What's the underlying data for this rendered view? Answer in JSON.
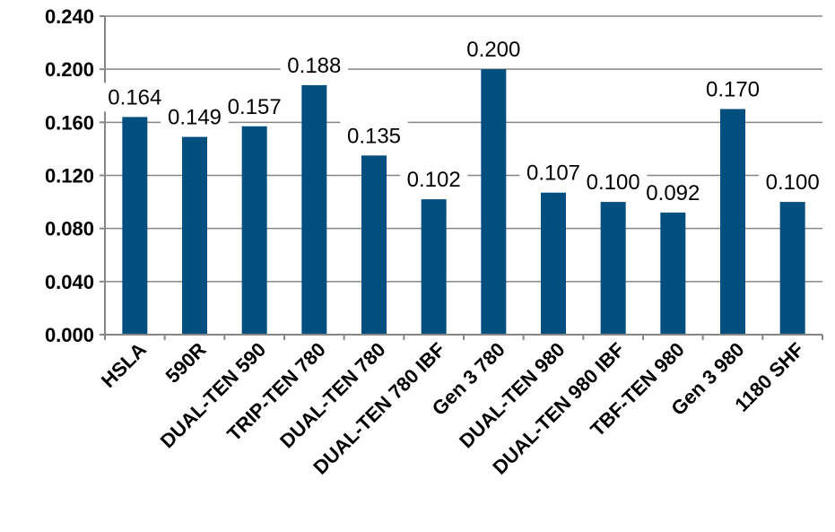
{
  "chart_data": {
    "type": "bar",
    "categories": [
      "HSLA",
      "590R",
      "DUAL-TEN 590",
      "TRIP-TEN 780",
      "DUAL-TEN 780",
      "DUAL-TEN 780 IBF",
      "Gen 3 780",
      "DUAL-TEN 980",
      "DUAL-TEN 980 IBF",
      "TBF-TEN 980",
      "Gen 3 980",
      "1180 SHF"
    ],
    "values": [
      0.164,
      0.149,
      0.157,
      0.188,
      0.135,
      0.102,
      0.2,
      0.107,
      0.1,
      0.092,
      0.17,
      0.1
    ],
    "value_labels": [
      "0.164",
      "0.149",
      "0.157",
      "0.188",
      "0.135",
      "0.102",
      "0.200",
      "0.107",
      "0.100",
      "0.092",
      "0.170",
      "0.100"
    ],
    "y_ticks": [
      "0.000",
      "0.040",
      "0.080",
      "0.120",
      "0.160",
      "0.200",
      "0.240"
    ],
    "ylim": [
      0,
      0.24
    ],
    "grid": true,
    "legend": "none",
    "colors": {
      "bar": "#004F7F",
      "grid": "#868686"
    }
  }
}
